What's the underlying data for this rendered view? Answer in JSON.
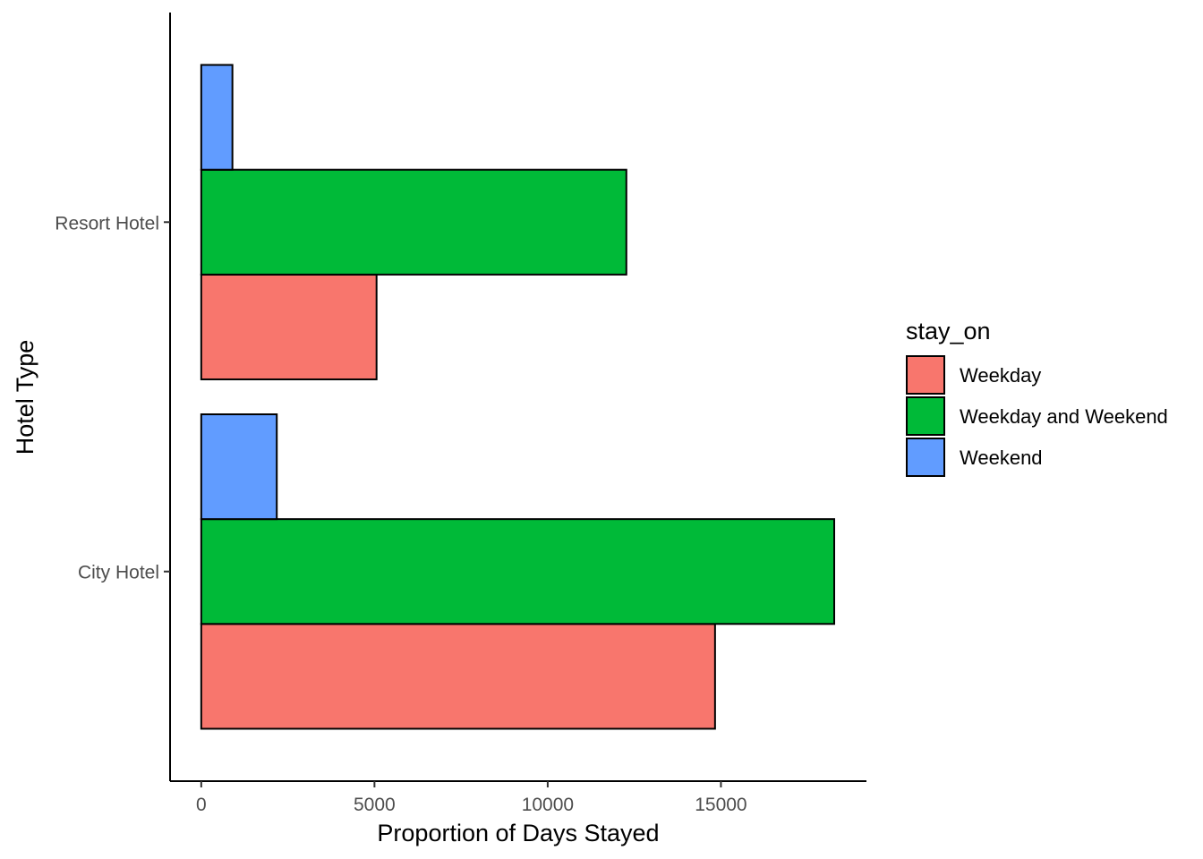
{
  "chart_data": {
    "type": "bar",
    "orientation": "horizontal",
    "categories": [
      "City Hotel",
      "Resort Hotel"
    ],
    "series": [
      {
        "name": "Weekday",
        "color": "#F8766D",
        "values": [
          14830,
          5060
        ]
      },
      {
        "name": "Weekday and Weekend",
        "color": "#00BA38",
        "values": [
          18270,
          12270
        ]
      },
      {
        "name": "Weekend",
        "color": "#619CFF",
        "values": [
          2180,
          900
        ]
      }
    ],
    "xlabel": "Proportion of Days Stayed",
    "ylabel": "Hotel Type",
    "xlim": [
      -900,
      19200
    ],
    "xticks": [
      0,
      5000,
      10000,
      15000
    ],
    "xtick_labels": [
      "0",
      "5000",
      "10000",
      "15000"
    ],
    "legend_title": "stay_on",
    "legend_position": "right",
    "grid": false
  }
}
